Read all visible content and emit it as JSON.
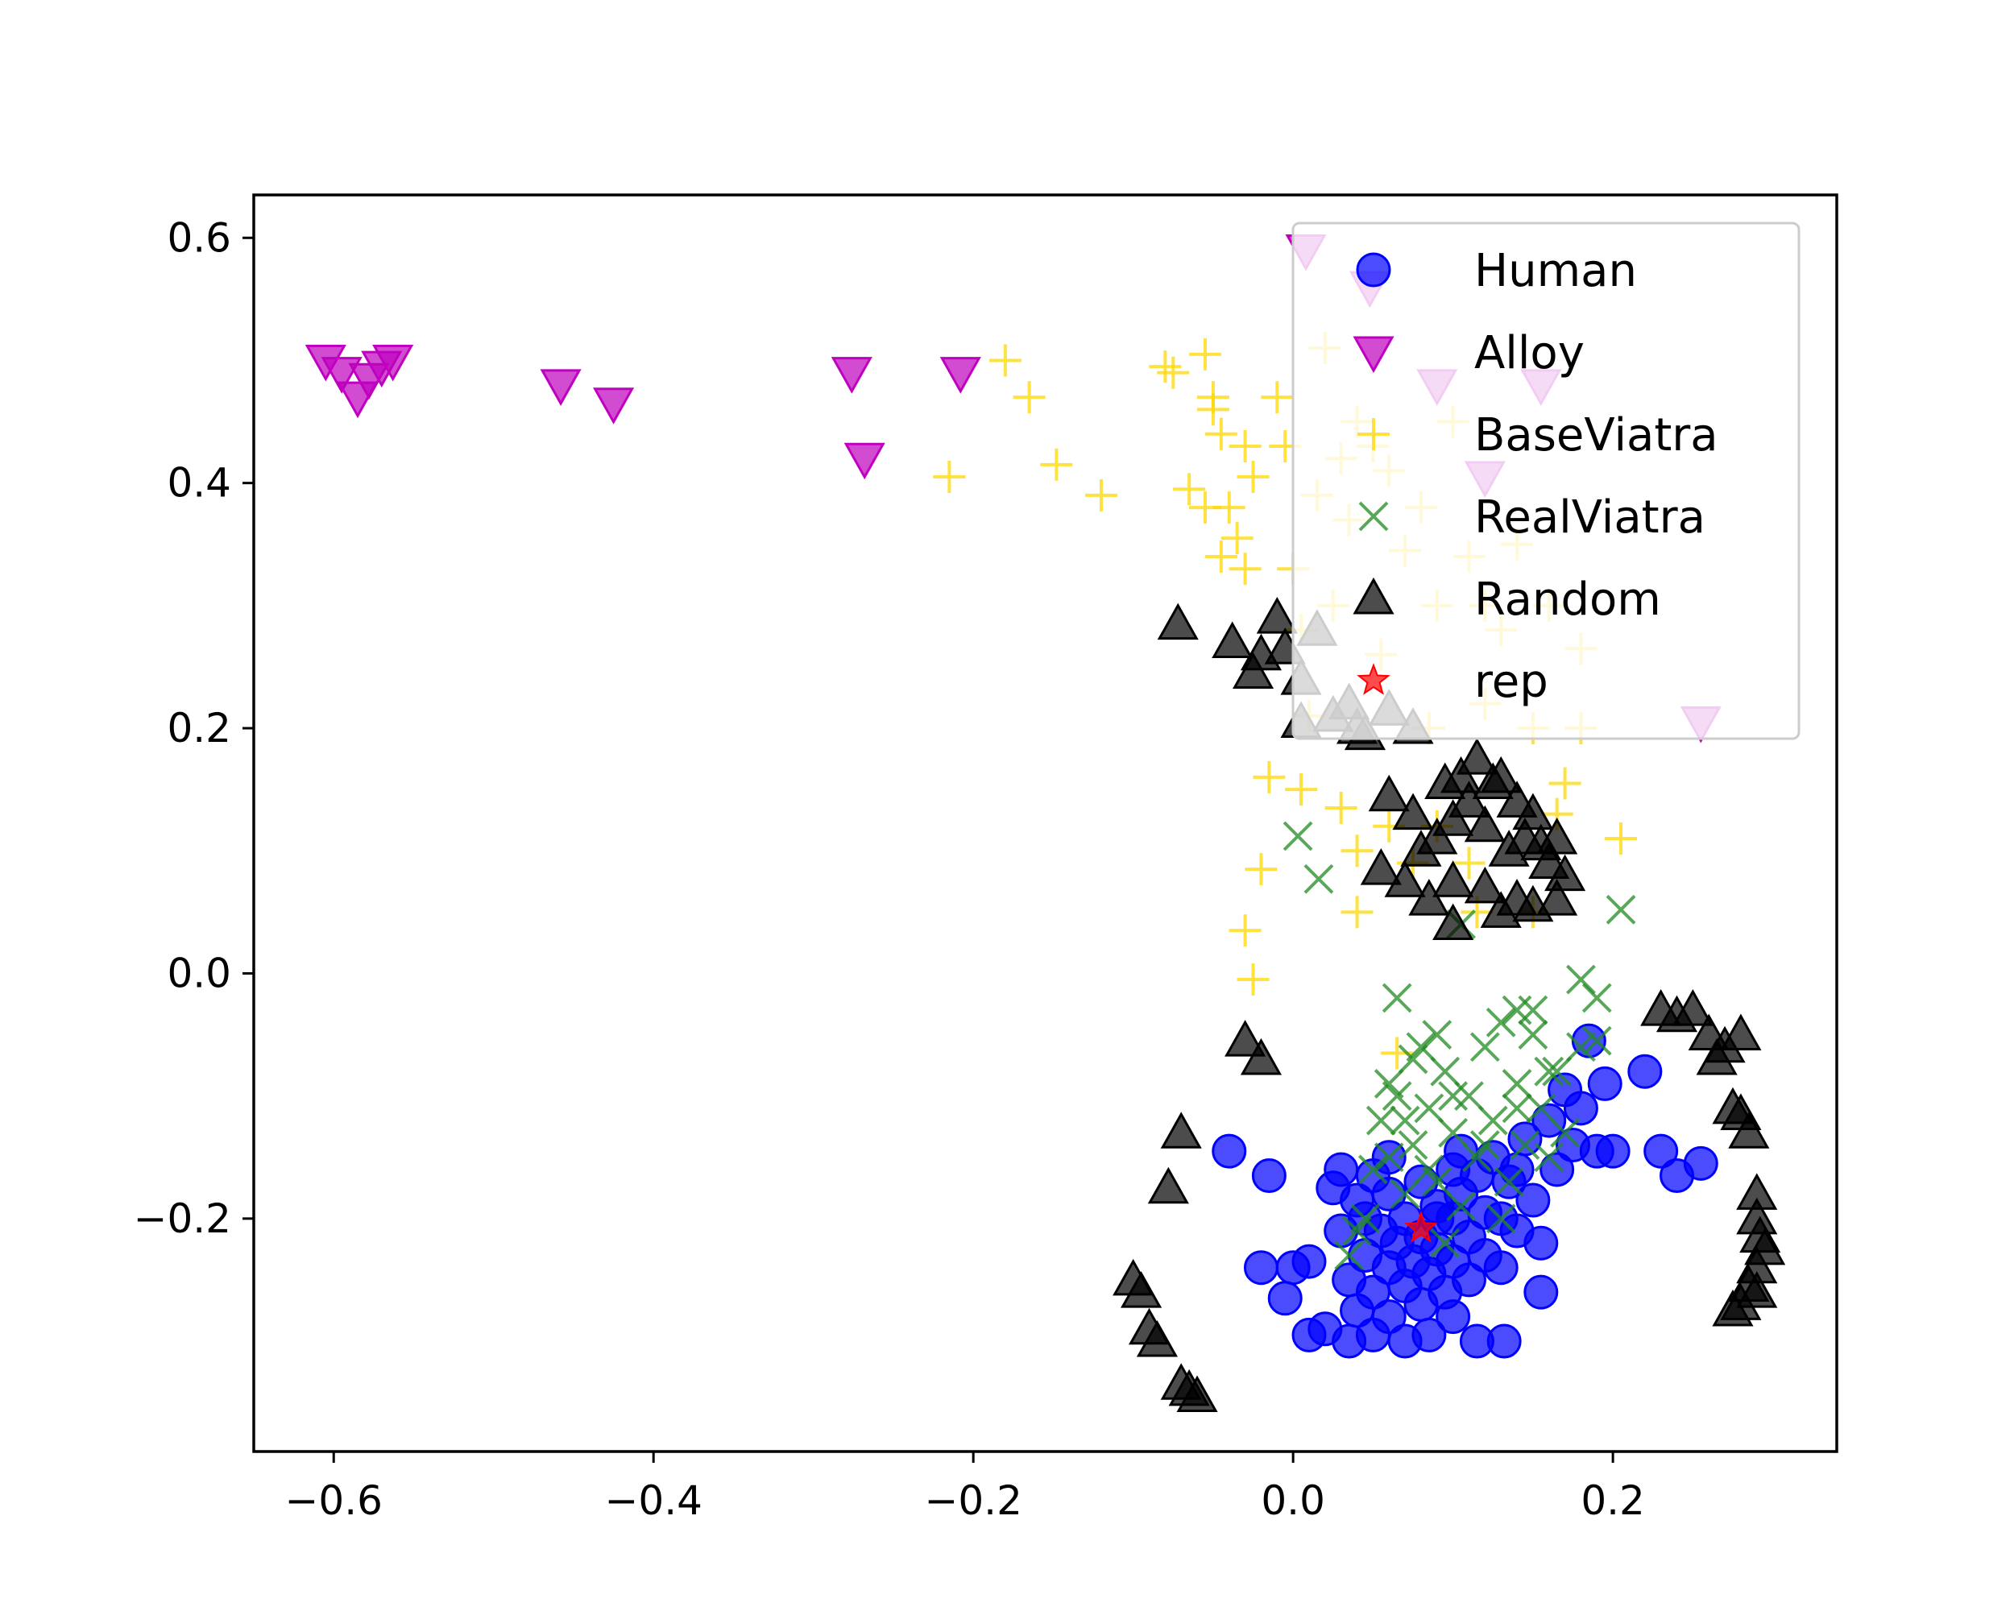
{
  "chart_data": {
    "type": "scatter",
    "title": "",
    "xlabel": "",
    "ylabel": "",
    "xlim": [
      -0.65,
      0.34
    ],
    "ylim": [
      -0.39,
      0.635
    ],
    "xticks": [
      {
        "value": -0.6,
        "label": "−0.6"
      },
      {
        "value": -0.4,
        "label": "−0.4"
      },
      {
        "value": -0.2,
        "label": "−0.2"
      },
      {
        "value": 0.0,
        "label": "0.0"
      },
      {
        "value": 0.2,
        "label": "0.2"
      }
    ],
    "yticks": [
      {
        "value": -0.2,
        "label": "−0.2"
      },
      {
        "value": 0.0,
        "label": "0.0"
      },
      {
        "value": 0.2,
        "label": "0.2"
      },
      {
        "value": 0.4,
        "label": "0.4"
      },
      {
        "value": 0.6,
        "label": "0.6"
      }
    ],
    "grid": false,
    "legend_position": "top-right",
    "series": [
      {
        "name": "Human",
        "marker": "circle",
        "color": "#0000ff",
        "points": [
          [
            -0.04,
            -0.145
          ],
          [
            -0.015,
            -0.165
          ],
          [
            -0.02,
            -0.24
          ],
          [
            -0.005,
            -0.265
          ],
          [
            0.0,
            -0.24
          ],
          [
            0.01,
            -0.235
          ],
          [
            0.01,
            -0.295
          ],
          [
            0.02,
            -0.29
          ],
          [
            0.025,
            -0.175
          ],
          [
            0.03,
            -0.16
          ],
          [
            0.03,
            -0.21
          ],
          [
            0.035,
            -0.25
          ],
          [
            0.035,
            -0.3
          ],
          [
            0.04,
            -0.185
          ],
          [
            0.04,
            -0.275
          ],
          [
            0.045,
            -0.2
          ],
          [
            0.045,
            -0.23
          ],
          [
            0.05,
            -0.165
          ],
          [
            0.05,
            -0.26
          ],
          [
            0.05,
            -0.295
          ],
          [
            0.055,
            -0.21
          ],
          [
            0.06,
            -0.18
          ],
          [
            0.06,
            -0.24
          ],
          [
            0.06,
            -0.28
          ],
          [
            0.065,
            -0.22
          ],
          [
            0.07,
            -0.2
          ],
          [
            0.07,
            -0.255
          ],
          [
            0.07,
            -0.3
          ],
          [
            0.075,
            -0.235
          ],
          [
            0.08,
            -0.17
          ],
          [
            0.08,
            -0.215
          ],
          [
            0.08,
            -0.27
          ],
          [
            0.085,
            -0.245
          ],
          [
            0.085,
            -0.295
          ],
          [
            0.09,
            -0.19
          ],
          [
            0.09,
            -0.225
          ],
          [
            0.095,
            -0.26
          ],
          [
            0.1,
            -0.16
          ],
          [
            0.1,
            -0.2
          ],
          [
            0.1,
            -0.235
          ],
          [
            0.1,
            -0.28
          ],
          [
            0.105,
            -0.18
          ],
          [
            0.11,
            -0.215
          ],
          [
            0.11,
            -0.25
          ],
          [
            0.115,
            -0.165
          ],
          [
            0.12,
            -0.195
          ],
          [
            0.12,
            -0.23
          ],
          [
            0.125,
            -0.15
          ],
          [
            0.13,
            -0.2
          ],
          [
            0.13,
            -0.24
          ],
          [
            0.135,
            -0.17
          ],
          [
            0.14,
            -0.21
          ],
          [
            0.145,
            -0.135
          ],
          [
            0.15,
            -0.185
          ],
          [
            0.155,
            -0.22
          ],
          [
            0.16,
            -0.12
          ],
          [
            0.165,
            -0.16
          ],
          [
            0.17,
            -0.095
          ],
          [
            0.175,
            -0.14
          ],
          [
            0.18,
            -0.11
          ],
          [
            0.19,
            -0.145
          ],
          [
            0.195,
            -0.09
          ],
          [
            0.2,
            -0.145
          ],
          [
            0.185,
            -0.055
          ],
          [
            0.22,
            -0.08
          ],
          [
            0.23,
            -0.145
          ],
          [
            0.24,
            -0.165
          ],
          [
            0.255,
            -0.155
          ],
          [
            0.155,
            -0.26
          ],
          [
            0.132,
            -0.3
          ],
          [
            0.115,
            -0.3
          ],
          [
            0.09,
            -0.2
          ],
          [
            0.06,
            -0.15
          ],
          [
            0.105,
            -0.145
          ],
          [
            0.14,
            -0.16
          ]
        ]
      },
      {
        "name": "Alloy",
        "marker": "triangle-down",
        "color": "#bf00bf",
        "points": [
          [
            -0.605,
            0.5
          ],
          [
            -0.595,
            0.49
          ],
          [
            -0.585,
            0.47
          ],
          [
            -0.578,
            0.485
          ],
          [
            -0.57,
            0.495
          ],
          [
            -0.563,
            0.5
          ],
          [
            -0.458,
            0.48
          ],
          [
            -0.425,
            0.465
          ],
          [
            -0.276,
            0.49
          ],
          [
            -0.268,
            0.42
          ],
          [
            -0.208,
            0.49
          ],
          [
            0.008,
            0.59
          ],
          [
            0.048,
            0.56
          ],
          [
            0.09,
            0.48
          ],
          [
            0.12,
            0.405
          ],
          [
            0.155,
            0.48
          ],
          [
            0.255,
            0.205
          ]
        ]
      },
      {
        "name": "BaseViatra",
        "marker": "plus",
        "color": "#ffd700",
        "points": [
          [
            -0.18,
            0.5
          ],
          [
            -0.165,
            0.47
          ],
          [
            -0.215,
            0.405
          ],
          [
            -0.148,
            0.415
          ],
          [
            -0.12,
            0.39
          ],
          [
            -0.08,
            0.495
          ],
          [
            -0.075,
            0.49
          ],
          [
            -0.065,
            0.395
          ],
          [
            -0.055,
            0.505
          ],
          [
            -0.05,
            0.47
          ],
          [
            -0.045,
            0.44
          ],
          [
            -0.05,
            0.46
          ],
          [
            -0.04,
            0.38
          ],
          [
            -0.035,
            0.355
          ],
          [
            -0.025,
            0.405
          ],
          [
            -0.03,
            0.43
          ],
          [
            -0.03,
            0.33
          ],
          [
            -0.01,
            0.47
          ],
          [
            -0.005,
            0.43
          ],
          [
            0.0,
            0.33
          ],
          [
            0.015,
            0.39
          ],
          [
            0.02,
            0.51
          ],
          [
            0.03,
            0.42
          ],
          [
            0.035,
            0.37
          ],
          [
            0.04,
            0.45
          ],
          [
            0.05,
            0.43
          ],
          [
            0.06,
            0.41
          ],
          [
            0.07,
            0.345
          ],
          [
            0.08,
            0.38
          ],
          [
            0.09,
            0.3
          ],
          [
            0.1,
            0.45
          ],
          [
            0.11,
            0.34
          ],
          [
            0.12,
            0.3
          ],
          [
            0.13,
            0.28
          ],
          [
            0.14,
            0.35
          ],
          [
            0.16,
            0.3
          ],
          [
            0.18,
            0.265
          ],
          [
            0.18,
            0.2
          ],
          [
            0.17,
            0.155
          ],
          [
            0.205,
            0.11
          ],
          [
            -0.015,
            0.16
          ],
          [
            0.005,
            0.15
          ],
          [
            0.03,
            0.135
          ],
          [
            0.04,
            0.1
          ],
          [
            0.06,
            0.12
          ],
          [
            0.075,
            0.09
          ],
          [
            -0.03,
            0.035
          ],
          [
            -0.025,
            -0.005
          ],
          [
            -0.02,
            0.085
          ],
          [
            0.04,
            0.05
          ],
          [
            0.065,
            -0.065
          ],
          [
            0.09,
            0.12
          ],
          [
            0.11,
            0.09
          ],
          [
            0.115,
            0.05
          ],
          [
            0.15,
            0.05
          ],
          [
            0.005,
            0.28
          ],
          [
            0.025,
            0.3
          ],
          [
            0.055,
            0.26
          ],
          [
            0.085,
            0.2
          ],
          [
            0.12,
            0.22
          ],
          [
            0.15,
            0.2
          ],
          [
            0.165,
            0.13
          ],
          [
            -0.055,
            0.38
          ],
          [
            -0.045,
            0.34
          ],
          [
            0.01,
            0.21
          ]
        ]
      },
      {
        "name": "RealViatra",
        "marker": "x",
        "color": "#228b22",
        "points": [
          [
            0.003,
            0.112
          ],
          [
            0.016,
            0.077
          ],
          [
            0.045,
            -0.2
          ],
          [
            0.05,
            -0.16
          ],
          [
            0.055,
            -0.12
          ],
          [
            0.06,
            -0.09
          ],
          [
            0.065,
            -0.02
          ],
          [
            0.07,
            -0.18
          ],
          [
            0.075,
            -0.14
          ],
          [
            0.08,
            -0.06
          ],
          [
            0.085,
            -0.11
          ],
          [
            0.09,
            -0.17
          ],
          [
            0.095,
            -0.08
          ],
          [
            0.1,
            -0.13
          ],
          [
            0.105,
            -0.19
          ],
          [
            0.11,
            -0.1
          ],
          [
            0.115,
            -0.15
          ],
          [
            0.12,
            -0.06
          ],
          [
            0.125,
            -0.12
          ],
          [
            0.13,
            -0.04
          ],
          [
            0.135,
            -0.17
          ],
          [
            0.14,
            -0.09
          ],
          [
            0.145,
            -0.14
          ],
          [
            0.15,
            -0.05
          ],
          [
            0.155,
            -0.11
          ],
          [
            0.16,
            -0.15
          ],
          [
            0.165,
            -0.08
          ],
          [
            0.17,
            -0.13
          ],
          [
            0.15,
            -0.03
          ],
          [
            0.18,
            -0.005
          ],
          [
            0.18,
            -0.06
          ],
          [
            0.19,
            -0.055
          ],
          [
            0.19,
            -0.02
          ],
          [
            0.205,
            0.052
          ],
          [
            0.035,
            -0.23
          ],
          [
            0.04,
            -0.21
          ],
          [
            0.06,
            -0.15
          ],
          [
            0.07,
            -0.12
          ],
          [
            0.085,
            -0.16
          ],
          [
            0.095,
            -0.22
          ],
          [
            0.1,
            -0.1
          ],
          [
            0.12,
            -0.14
          ],
          [
            0.13,
            -0.2
          ],
          [
            0.14,
            -0.11
          ],
          [
            0.16,
            -0.08
          ],
          [
            0.065,
            -0.1
          ],
          [
            0.075,
            -0.07
          ],
          [
            0.09,
            -0.05
          ],
          [
            0.105,
            0.04
          ],
          [
            0.14,
            -0.03
          ]
        ]
      },
      {
        "name": "Random",
        "marker": "triangle-up",
        "color": "#000000",
        "points": [
          [
            -0.072,
            0.285
          ],
          [
            -0.038,
            0.27
          ],
          [
            -0.02,
            0.26
          ],
          [
            -0.025,
            0.245
          ],
          [
            -0.01,
            0.29
          ],
          [
            -0.005,
            0.265
          ],
          [
            0.005,
            0.24
          ],
          [
            0.015,
            0.28
          ],
          [
            0.025,
            0.21
          ],
          [
            0.005,
            0.205
          ],
          [
            0.04,
            0.2
          ],
          [
            0.06,
            0.215
          ],
          [
            0.075,
            0.2
          ],
          [
            0.045,
            0.195
          ],
          [
            0.035,
            0.22
          ],
          [
            0.06,
            0.145
          ],
          [
            0.075,
            0.13
          ],
          [
            0.09,
            0.11
          ],
          [
            0.095,
            0.155
          ],
          [
            0.1,
            0.125
          ],
          [
            0.105,
            0.16
          ],
          [
            0.11,
            0.14
          ],
          [
            0.115,
            0.175
          ],
          [
            0.12,
            0.12
          ],
          [
            0.125,
            0.155
          ],
          [
            0.13,
            0.16
          ],
          [
            0.135,
            0.1
          ],
          [
            0.14,
            0.14
          ],
          [
            0.145,
            0.11
          ],
          [
            0.15,
            0.13
          ],
          [
            0.155,
            0.105
          ],
          [
            0.16,
            0.09
          ],
          [
            0.165,
            0.11
          ],
          [
            0.17,
            0.08
          ],
          [
            0.165,
            0.06
          ],
          [
            0.14,
            0.06
          ],
          [
            0.12,
            0.07
          ],
          [
            0.1,
            0.075
          ],
          [
            0.085,
            0.06
          ],
          [
            0.07,
            0.075
          ],
          [
            0.055,
            0.085
          ],
          [
            0.1,
            0.04
          ],
          [
            0.13,
            0.05
          ],
          [
            0.15,
            0.055
          ],
          [
            0.08,
            0.1
          ],
          [
            -0.03,
            -0.055
          ],
          [
            -0.02,
            -0.07
          ],
          [
            -0.07,
            -0.13
          ],
          [
            -0.078,
            -0.175
          ],
          [
            -0.1,
            -0.25
          ],
          [
            -0.095,
            -0.26
          ],
          [
            -0.09,
            -0.29
          ],
          [
            -0.085,
            -0.3
          ],
          [
            -0.07,
            -0.335
          ],
          [
            -0.065,
            -0.34
          ],
          [
            -0.06,
            -0.345
          ],
          [
            0.23,
            -0.03
          ],
          [
            0.24,
            -0.035
          ],
          [
            0.25,
            -0.03
          ],
          [
            0.26,
            -0.05
          ],
          [
            0.265,
            -0.07
          ],
          [
            0.27,
            -0.06
          ],
          [
            0.275,
            -0.11
          ],
          [
            0.28,
            -0.115
          ],
          [
            0.285,
            -0.13
          ],
          [
            0.29,
            -0.2
          ],
          [
            0.292,
            -0.215
          ],
          [
            0.295,
            -0.225
          ],
          [
            0.29,
            -0.24
          ],
          [
            0.285,
            -0.255
          ],
          [
            0.28,
            -0.27
          ],
          [
            0.275,
            -0.275
          ],
          [
            0.29,
            -0.26
          ],
          [
            0.29,
            -0.18
          ],
          [
            0.28,
            -0.05
          ]
        ]
      },
      {
        "name": "rep",
        "marker": "star",
        "color": "#ff0000",
        "points": [
          [
            0.08,
            -0.208
          ]
        ]
      }
    ]
  }
}
